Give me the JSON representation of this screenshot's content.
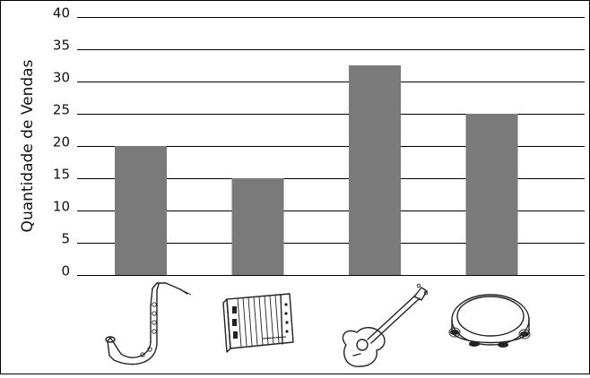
{
  "chart_data": {
    "type": "bar",
    "categories": [
      "saxophone",
      "accordion",
      "guitar",
      "tambourine"
    ],
    "values": [
      20,
      15,
      32.5,
      25
    ],
    "title": "",
    "xlabel": "",
    "ylabel": "Quantidade de Vendas",
    "ylim": [
      0,
      40
    ],
    "yticks": [
      "0",
      "5",
      "10",
      "15",
      "20",
      "25",
      "30",
      "35",
      "40"
    ],
    "grid": true,
    "bar_color": "#7a7a7a",
    "category_icons": [
      "saxophone-icon",
      "accordion-icon",
      "guitar-icon",
      "tambourine-icon"
    ]
  }
}
